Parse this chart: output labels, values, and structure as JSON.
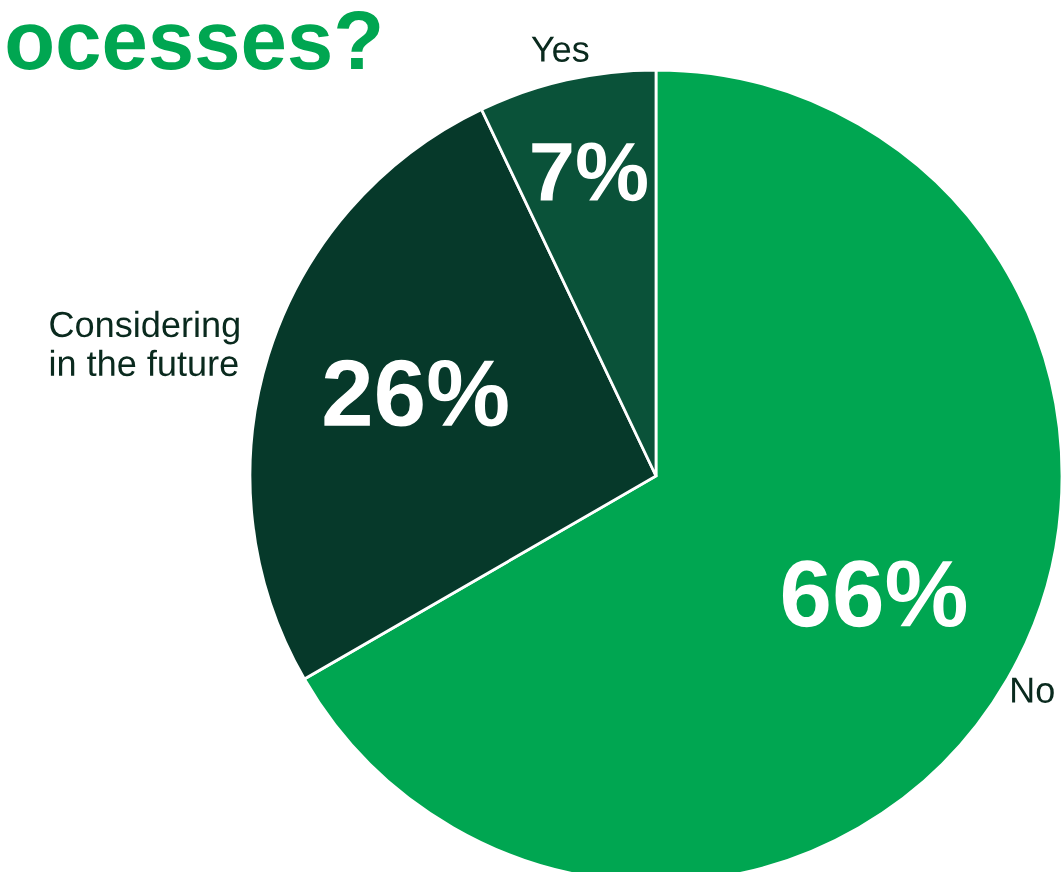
{
  "chart_data": {
    "type": "pie",
    "title": "ocesses?",
    "categories": [
      "No",
      "Considering\nin the future",
      "Yes"
    ],
    "values": [
      66,
      26,
      7
    ],
    "colors": [
      "#00a651",
      "#06392a",
      "#0a5239"
    ],
    "value_labels": [
      "66%",
      "26%",
      "7%"
    ]
  }
}
